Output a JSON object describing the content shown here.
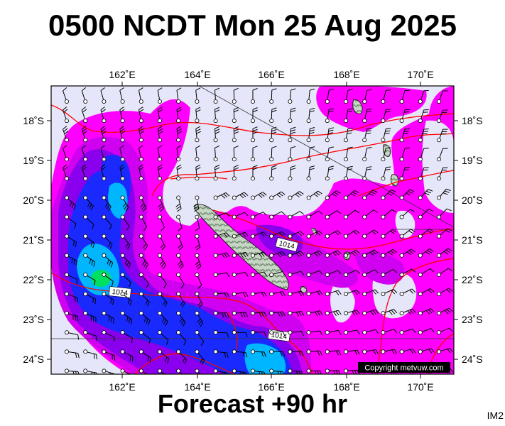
{
  "title": "0500 NCDT Mon 25 Aug 2025",
  "forecast": "Forecast +90 hr",
  "image_code": "IM2",
  "copyright": "Copyright metvuw.com",
  "axes": {
    "lon_labels": [
      "162˚E",
      "164˚E",
      "166˚E",
      "168˚E",
      "170˚E"
    ],
    "lat_labels": [
      "18˚S",
      "19˚S",
      "20˚S",
      "21˚S",
      "22˚S",
      "23˚S",
      "24˚S"
    ]
  },
  "isobar_labels": [
    "1014",
    "1014",
    "1014"
  ],
  "colors": {
    "background": "#e6e6fa",
    "light_magenta": "#ff00ff",
    "magenta": "#d000f0",
    "violet": "#8a00ee",
    "blue": "#1a2aff",
    "cyan": "#00b6ff",
    "green": "#00e060",
    "isobar": "#ff0000",
    "land": "#a8bca8"
  }
}
